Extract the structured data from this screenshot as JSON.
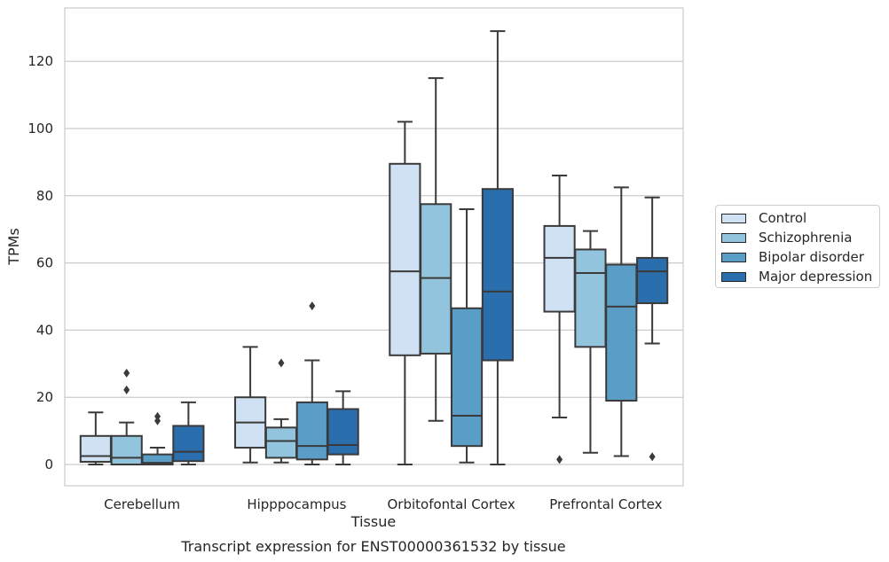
{
  "chart_data": {
    "type": "box",
    "title": "",
    "caption": "Transcript expression for ENST00000361532 by tissue",
    "xlabel": "Tissue",
    "ylabel": "TPMs",
    "ylim": [
      -6,
      135
    ],
    "yticks": [
      0,
      20,
      40,
      60,
      80,
      100,
      120
    ],
    "grid": "horizontal",
    "legend_position": "right",
    "categories": [
      "Cerebellum",
      "Hipppocampus",
      "Orbitofontal Cortex",
      "Prefrontal Cortex"
    ],
    "series": [
      {
        "name": "Control",
        "color": "#cfe1f2",
        "boxes": [
          {
            "whislo": 0,
            "q1": 0.8,
            "med": 2.5,
            "q3": 8.5,
            "whishi": 15.5,
            "fliers": []
          },
          {
            "whislo": 0.6,
            "q1": 5,
            "med": 12.5,
            "q3": 20,
            "whishi": 35,
            "fliers": []
          },
          {
            "whislo": 0,
            "q1": 32.5,
            "med": 57.5,
            "q3": 89.5,
            "whishi": 102,
            "fliers": []
          },
          {
            "whislo": 14,
            "q1": 45.5,
            "med": 61.5,
            "q3": 71,
            "whishi": 86,
            "fliers": [
              1.5
            ]
          }
        ]
      },
      {
        "name": "Schizophrenia",
        "color": "#93c4de",
        "boxes": [
          {
            "whislo": 0,
            "q1": 0,
            "med": 2,
            "q3": 8.5,
            "whishi": 12.5,
            "fliers": [
              22.2,
              27.2
            ]
          },
          {
            "whislo": 0.6,
            "q1": 2,
            "med": 7,
            "q3": 11,
            "whishi": 13.5,
            "fliers": [
              30.2
            ]
          },
          {
            "whislo": 13,
            "q1": 33,
            "med": 55.5,
            "q3": 77.5,
            "whishi": 115,
            "fliers": []
          },
          {
            "whislo": 3.5,
            "q1": 35,
            "med": 57,
            "q3": 64,
            "whishi": 69.5,
            "fliers": []
          }
        ]
      },
      {
        "name": "Bipolar disorder",
        "color": "#5a9ec8",
        "boxes": [
          {
            "whislo": 0,
            "q1": 0,
            "med": 0.5,
            "q3": 3,
            "whishi": 5,
            "fliers": [
              13,
              14.3
            ]
          },
          {
            "whislo": 0,
            "q1": 1.5,
            "med": 5.5,
            "q3": 18.5,
            "whishi": 31,
            "fliers": [
              47.2
            ]
          },
          {
            "whislo": 0.6,
            "q1": 5.5,
            "med": 14.5,
            "q3": 46.5,
            "whishi": 76,
            "fliers": []
          },
          {
            "whislo": 2.5,
            "q1": 19,
            "med": 47,
            "q3": 59.5,
            "whishi": 82.5,
            "fliers": []
          }
        ]
      },
      {
        "name": "Major depression",
        "color": "#2a6eae",
        "boxes": [
          {
            "whislo": 0,
            "q1": 1,
            "med": 3.8,
            "q3": 11.5,
            "whishi": 18.5,
            "fliers": []
          },
          {
            "whislo": 0,
            "q1": 3,
            "med": 5.8,
            "q3": 16.5,
            "whishi": 21.8,
            "fliers": []
          },
          {
            "whislo": 0,
            "q1": 31,
            "med": 51.5,
            "q3": 82,
            "whishi": 129,
            "fliers": []
          },
          {
            "whislo": 36,
            "q1": 48,
            "med": 57.5,
            "q3": 61.5,
            "whishi": 79.5,
            "fliers": [
              2.3
            ]
          }
        ]
      }
    ]
  }
}
